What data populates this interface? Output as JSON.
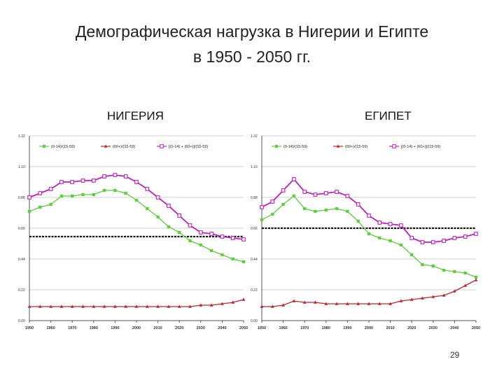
{
  "slide": {
    "title_line1": "Демографическая нагрузка в Нигерии и Египте",
    "title_line2": "в 1950 - 2050 гг.",
    "page_number": "29"
  },
  "colors": {
    "green": "#5ccf3a",
    "red": "#c0262c",
    "magenta": "#c21fc2",
    "threshold": "#111111",
    "grid": "#d0d0d0"
  },
  "chart_data": [
    {
      "type": "line",
      "subtitle": "НИГЕРИЯ",
      "categories": [
        "1950",
        "1955",
        "1960",
        "1965",
        "1970",
        "1975",
        "1980",
        "1985",
        "1990",
        "1995",
        "2000",
        "2005",
        "2010",
        "2015",
        "2020",
        "2025",
        "2030",
        "2035",
        "2040",
        "2045",
        "2050"
      ],
      "x_tick_labels": [
        "1950",
        "1960",
        "1970",
        "1980",
        "1990",
        "2000",
        "2010",
        "2020",
        "2030",
        "2040",
        "2050"
      ],
      "ylim": [
        0,
        1.32
      ],
      "y_tick_labels": [
        "0.00",
        "0.22",
        "0.44",
        "0.66",
        "0.88",
        "1.10",
        "1.32"
      ],
      "threshold": 0.6,
      "legend": [
        "(0-14)/(15-59)",
        "(60+)/(15-59)",
        "[(0-14) + (60+)]/(15-59)"
      ],
      "series": [
        {
          "name": "(0-14)/(15-59)",
          "color": "green",
          "marker": "square",
          "values": [
            0.78,
            0.81,
            0.83,
            0.89,
            0.89,
            0.9,
            0.9,
            0.93,
            0.93,
            0.91,
            0.86,
            0.8,
            0.74,
            0.67,
            0.63,
            0.57,
            0.54,
            0.5,
            0.47,
            0.44,
            0.42
          ]
        },
        {
          "name": "(60+)/(15-59)",
          "color": "red",
          "marker": "triangle",
          "values": [
            0.1,
            0.1,
            0.1,
            0.1,
            0.1,
            0.1,
            0.1,
            0.1,
            0.1,
            0.1,
            0.1,
            0.1,
            0.1,
            0.1,
            0.1,
            0.1,
            0.11,
            0.11,
            0.12,
            0.13,
            0.15
          ]
        },
        {
          "name": "[(0-14) + (60+)]/(15-59)",
          "color": "magenta",
          "marker": "square",
          "values": [
            0.88,
            0.91,
            0.94,
            0.99,
            0.99,
            1.0,
            1.0,
            1.03,
            1.04,
            1.03,
            0.99,
            0.94,
            0.88,
            0.82,
            0.75,
            0.68,
            0.63,
            0.62,
            0.6,
            0.59,
            0.58
          ]
        }
      ]
    },
    {
      "type": "line",
      "subtitle": "ЕГИПЕТ",
      "categories": [
        "1950",
        "1955",
        "1960",
        "1965",
        "1970",
        "1975",
        "1980",
        "1985",
        "1990",
        "1995",
        "2000",
        "2005",
        "2010",
        "2015",
        "2020",
        "2025",
        "2030",
        "2035",
        "2040",
        "2045",
        "2050"
      ],
      "x_tick_labels": [
        "1950",
        "1960",
        "1970",
        "1980",
        "1990",
        "2000",
        "2010",
        "2020",
        "2030",
        "2040",
        "2050"
      ],
      "ylim": [
        0,
        1.32
      ],
      "y_tick_labels": [
        "0.00",
        "0.22",
        "0.44",
        "0.66",
        "0.88",
        "1.10",
        "1.32"
      ],
      "threshold": 0.66,
      "legend": [
        "(0-14)/(15-59)",
        "(60+)/(15-59)",
        "[(0-14) + (60+)]/(15-59)"
      ],
      "series": [
        {
          "name": "(0-14)/(15-59)",
          "color": "green",
          "marker": "square",
          "values": [
            0.72,
            0.76,
            0.83,
            0.89,
            0.8,
            0.78,
            0.79,
            0.8,
            0.78,
            0.71,
            0.62,
            0.59,
            0.57,
            0.54,
            0.47,
            0.4,
            0.39,
            0.36,
            0.35,
            0.34,
            0.31
          ]
        },
        {
          "name": "(60+)/(15-59)",
          "color": "red",
          "marker": "triangle",
          "values": [
            0.1,
            0.1,
            0.11,
            0.14,
            0.13,
            0.13,
            0.12,
            0.12,
            0.12,
            0.12,
            0.12,
            0.12,
            0.12,
            0.14,
            0.15,
            0.16,
            0.17,
            0.18,
            0.21,
            0.25,
            0.29
          ]
        },
        {
          "name": "[(0-14) + (60+)]/(15-59)",
          "color": "magenta",
          "marker": "square",
          "values": [
            0.81,
            0.85,
            0.93,
            1.01,
            0.92,
            0.9,
            0.91,
            0.92,
            0.89,
            0.83,
            0.75,
            0.7,
            0.69,
            0.68,
            0.59,
            0.56,
            0.56,
            0.57,
            0.59,
            0.6,
            0.62
          ]
        }
      ]
    }
  ]
}
